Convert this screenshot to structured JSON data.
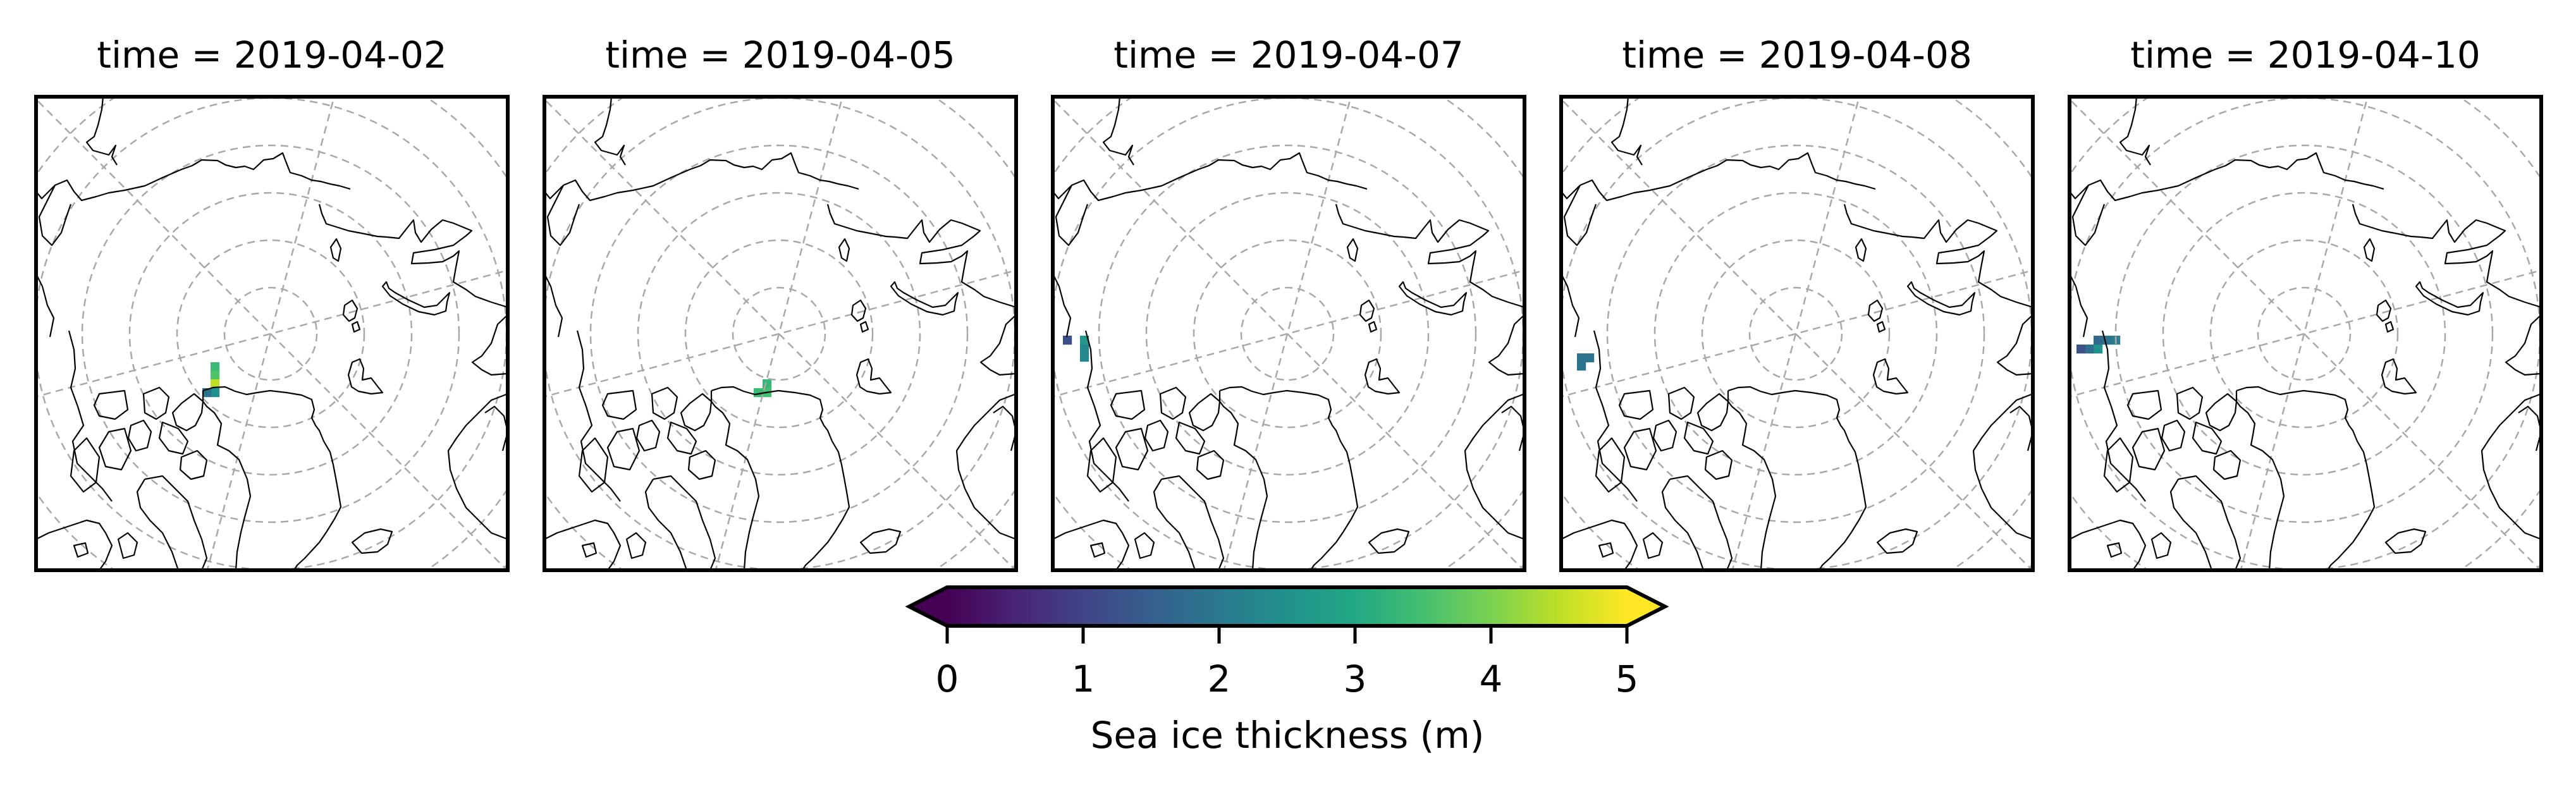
{
  "chart_data": {
    "type": "heatmap",
    "projection": "north-polar-stereographic",
    "variable": "Sea ice thickness",
    "units": "m",
    "panels": [
      {
        "title": "time = 2019-04-02",
        "cells": [
          {
            "value": 3.4
          },
          {
            "value": 3.6
          },
          {
            "value": 4.5
          },
          {
            "value": 2.5
          },
          {
            "value": 1.9
          }
        ]
      },
      {
        "title": "time = 2019-04-05",
        "cells": [
          {
            "value": 3.3
          },
          {
            "value": 3.4
          },
          {
            "value": 3.5
          }
        ]
      },
      {
        "title": "time = 2019-04-07",
        "cells": [
          {
            "value": 1.2
          },
          {
            "value": 2.6
          },
          {
            "value": 2.3
          },
          {
            "value": 2.3
          }
        ]
      },
      {
        "title": "time = 2019-04-08",
        "cells": [
          {
            "value": 1.9
          },
          {
            "value": 1.9
          },
          {
            "value": 1.9
          }
        ]
      },
      {
        "title": "time = 2019-04-10",
        "cells": [
          {
            "value": 1.7
          },
          {
            "value": 1.9
          },
          {
            "value": 2.1
          },
          {
            "value": 1.3
          },
          {
            "value": 1.8
          },
          {
            "value": 2.5
          }
        ]
      }
    ],
    "colorbar": {
      "label": "Sea ice thickness (m)",
      "colormap": "viridis",
      "range": [
        0,
        5
      ],
      "extend": "both",
      "ticks": [
        0,
        1,
        2,
        3,
        4,
        5
      ],
      "tick_labels": [
        "0",
        "1",
        "2",
        "3",
        "4",
        "5"
      ],
      "orientation": "horizontal",
      "placement": "bottom-center"
    },
    "graticule": {
      "latitudes": [
        80,
        70,
        60,
        50,
        40
      ],
      "meridian_interval_deg": 60,
      "style": "dashed"
    },
    "colors": {
      "coastline": "#000000",
      "gridlines": "#a8a8a8",
      "frame": "#000000"
    }
  }
}
